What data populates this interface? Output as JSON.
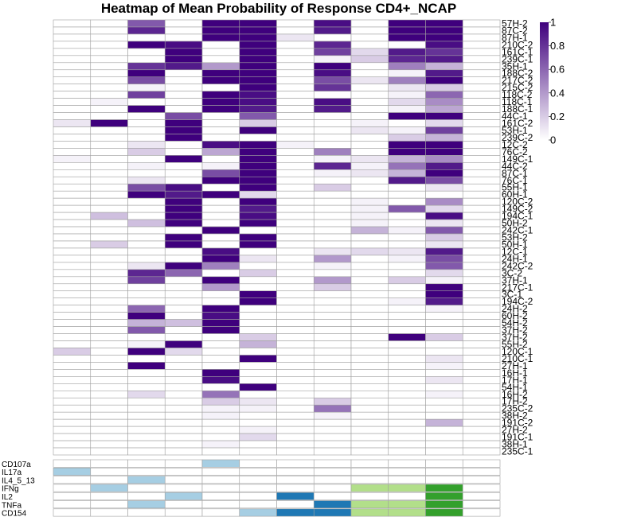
{
  "chart_data": {
    "type": "heatmap",
    "title": "Heatmap of Mean Probability of Response CD4+_NCAP",
    "colorbar": {
      "ticks": [
        "1",
        "0.8",
        "0.6",
        "0.4",
        "0.2",
        "0"
      ],
      "range": [
        0,
        1
      ],
      "low_color": "#ffffff",
      "high_color": "#3f007d"
    },
    "n_columns": 12,
    "rows": [
      {
        "label": "57H-2",
        "values": [
          0,
          0,
          0.65,
          0,
          1,
          1,
          0,
          0.95,
          0,
          1,
          1,
          0
        ]
      },
      {
        "label": "87C-2",
        "values": [
          0,
          0,
          0.85,
          0,
          1,
          1,
          0,
          0.9,
          0,
          1,
          1,
          0
        ]
      },
      {
        "label": "87H-1",
        "values": [
          0,
          0,
          0,
          0,
          1,
          1,
          0.1,
          0,
          0,
          1,
          1,
          0
        ]
      },
      {
        "label": "210C-2",
        "values": [
          0,
          0,
          1,
          0.95,
          0,
          1,
          0,
          0.85,
          0,
          0,
          0.95,
          0
        ]
      },
      {
        "label": "161C-1",
        "values": [
          0,
          0,
          0,
          1,
          0,
          1,
          0,
          0.75,
          0.15,
          0.9,
          0.8,
          0
        ]
      },
      {
        "label": "239C-1",
        "values": [
          0,
          0,
          0,
          1,
          0,
          1,
          0,
          0.05,
          0.2,
          0.85,
          0.9,
          0
        ]
      },
      {
        "label": "35H-1",
        "values": [
          0,
          0,
          0.8,
          0.9,
          0.4,
          1,
          0,
          1,
          0,
          0.5,
          0.3,
          0
        ]
      },
      {
        "label": "188C-2",
        "values": [
          0,
          0,
          1,
          0,
          1,
          1,
          0,
          0.95,
          0,
          0.05,
          0.9,
          0
        ]
      },
      {
        "label": "217C-2",
        "values": [
          0,
          0,
          0.7,
          0,
          1,
          1,
          0,
          0.7,
          0.1,
          0.5,
          1,
          0
        ]
      },
      {
        "label": "215C-2",
        "values": [
          0,
          0,
          0.05,
          0,
          0,
          1,
          0,
          0.8,
          0,
          0.1,
          0.2,
          0
        ]
      },
      {
        "label": "118C-2",
        "values": [
          0,
          0,
          0.75,
          0,
          1,
          0.95,
          0,
          0,
          0,
          0.05,
          0.6,
          0
        ]
      },
      {
        "label": "118C-1",
        "values": [
          0,
          0.05,
          0,
          0,
          1,
          0.95,
          0,
          0.95,
          0,
          0.15,
          0.45,
          0
        ]
      },
      {
        "label": "188C-1",
        "values": [
          0,
          0,
          1,
          0,
          1,
          0.9,
          0,
          0.9,
          0,
          0.05,
          0.35,
          0
        ]
      },
      {
        "label": "44C-1",
        "values": [
          0,
          0,
          0,
          0.7,
          0,
          0.65,
          0,
          0,
          0,
          1,
          1,
          0
        ]
      },
      {
        "label": "161C-2",
        "values": [
          0.1,
          1,
          0,
          1,
          0,
          0.2,
          0,
          0,
          0.05,
          0,
          0.15,
          0
        ]
      },
      {
        "label": "53H-1",
        "values": [
          0,
          0,
          0,
          1,
          0,
          1,
          0,
          0,
          0.1,
          0.05,
          0.75,
          0
        ]
      },
      {
        "label": "239C-2",
        "values": [
          0,
          0,
          0,
          1,
          0,
          0,
          0,
          0,
          0,
          0.2,
          0.3,
          0
        ]
      },
      {
        "label": "12C-2",
        "values": [
          0,
          0,
          0.1,
          0,
          0.95,
          1,
          0.05,
          0,
          0,
          1,
          1,
          0
        ]
      },
      {
        "label": "76C-2",
        "values": [
          0,
          0,
          0.2,
          0,
          0.35,
          1,
          0,
          0.5,
          0,
          1,
          1,
          0
        ]
      },
      {
        "label": "149C-1",
        "values": [
          0.05,
          0,
          0,
          1,
          0,
          1,
          0,
          0.05,
          0.1,
          0.3,
          0.45,
          0
        ]
      },
      {
        "label": "44C-2",
        "values": [
          0,
          0,
          0.05,
          0,
          0.05,
          1,
          0,
          0.85,
          0.05,
          0.55,
          0.9,
          0
        ]
      },
      {
        "label": "87C-1",
        "values": [
          0,
          0,
          0,
          0,
          0.7,
          1,
          0,
          0.05,
          0.1,
          0.3,
          1,
          0
        ]
      },
      {
        "label": "76C-1",
        "values": [
          0,
          0,
          0.1,
          0,
          1,
          1,
          0,
          0,
          0,
          0.9,
          0.7,
          0
        ]
      },
      {
        "label": "55H-1",
        "values": [
          0,
          0,
          0.7,
          0.95,
          0,
          1,
          0,
          0.2,
          0,
          0,
          0.1,
          0
        ]
      },
      {
        "label": "60H-1",
        "values": [
          0,
          0,
          1,
          0.9,
          1,
          0.15,
          0,
          0,
          0,
          0,
          0,
          0
        ]
      },
      {
        "label": "120C-2",
        "values": [
          0,
          0,
          0,
          1,
          0,
          1,
          0,
          0,
          0.05,
          0,
          0.45,
          0
        ]
      },
      {
        "label": "149C-2",
        "values": [
          0,
          0,
          0,
          1,
          0,
          0.9,
          0,
          0,
          0.05,
          0.65,
          0.15,
          0
        ]
      },
      {
        "label": "194C-1",
        "values": [
          0,
          0.25,
          0,
          1,
          0,
          0.95,
          0,
          0,
          0.05,
          0,
          0.95,
          0
        ]
      },
      {
        "label": "50H-2",
        "values": [
          0,
          0,
          0.25,
          1,
          0,
          1,
          0,
          0,
          0.05,
          0,
          0.1,
          0
        ]
      },
      {
        "label": "242C-1",
        "values": [
          0,
          0,
          0,
          0,
          1,
          0,
          0,
          0,
          0.3,
          0.05,
          0.65,
          0
        ]
      },
      {
        "label": "53H-2",
        "values": [
          0,
          0,
          0,
          1,
          0,
          1,
          0,
          0,
          0,
          0,
          0.2,
          0
        ]
      },
      {
        "label": "50H-1",
        "values": [
          0,
          0.2,
          0,
          1,
          0,
          1,
          0,
          0,
          0,
          0,
          0.1,
          0
        ]
      },
      {
        "label": "12C-1",
        "values": [
          0,
          0,
          0,
          0,
          0.95,
          0,
          0,
          0.1,
          0.15,
          0.1,
          0.9,
          0
        ]
      },
      {
        "label": "24H-1",
        "values": [
          0,
          0,
          0,
          0,
          1,
          0.1,
          0,
          0.4,
          0,
          0.05,
          0.7,
          0
        ]
      },
      {
        "label": "242C-2",
        "values": [
          0,
          0,
          0.1,
          1,
          0.5,
          0,
          0,
          0.05,
          0,
          0,
          0.65,
          0
        ]
      },
      {
        "label": "3C-2",
        "values": [
          0,
          0,
          0.85,
          0.6,
          0,
          0.2,
          0,
          0,
          0,
          0,
          0.15,
          0
        ]
      },
      {
        "label": "37H-1",
        "values": [
          0,
          0,
          0.75,
          0,
          1,
          0,
          0,
          0.4,
          0,
          0.2,
          0.05,
          0
        ]
      },
      {
        "label": "217C-1",
        "values": [
          0,
          0,
          0,
          0,
          0.4,
          0,
          0,
          0.2,
          0,
          0,
          1,
          0
        ]
      },
      {
        "label": "3C-1",
        "values": [
          0,
          0,
          0,
          0,
          0,
          1,
          0,
          0,
          0,
          0,
          1,
          0
        ]
      },
      {
        "label": "194C-2",
        "values": [
          0,
          0,
          0,
          0,
          0,
          1,
          0,
          0,
          0,
          0.05,
          0.9,
          0
        ]
      },
      {
        "label": "24H-2",
        "values": [
          0,
          0,
          0.6,
          0,
          1,
          0,
          0,
          0,
          0,
          0,
          0.05,
          0
        ]
      },
      {
        "label": "60H-2",
        "values": [
          0,
          0,
          1,
          0,
          0.95,
          0,
          0,
          0,
          0,
          0,
          0,
          0
        ]
      },
      {
        "label": "54H-2",
        "values": [
          0,
          0,
          0.3,
          0.25,
          1,
          0,
          0,
          0,
          0,
          0,
          0,
          0
        ]
      },
      {
        "label": "37H-2",
        "values": [
          0,
          0,
          0.65,
          0,
          1,
          0,
          0,
          0,
          0,
          0,
          0,
          0
        ]
      },
      {
        "label": "37H-2",
        "values": [
          0,
          0,
          0,
          0,
          0,
          0.2,
          0,
          0,
          0,
          1,
          0.2,
          0
        ]
      },
      {
        "label": "55H-2",
        "values": [
          0,
          0,
          0.05,
          1,
          0,
          0.3,
          0,
          0,
          0,
          0,
          0,
          0
        ]
      },
      {
        "label": "120C-1",
        "values": [
          0.2,
          0,
          1,
          0.15,
          0,
          0,
          0,
          0,
          0,
          0,
          0,
          0
        ]
      },
      {
        "label": "210C-1",
        "values": [
          0,
          0,
          0,
          0,
          0,
          1,
          0,
          0,
          0,
          0,
          0.1,
          0
        ]
      },
      {
        "label": "27H-1",
        "values": [
          0,
          0,
          1,
          0,
          0,
          0,
          0,
          0,
          0,
          0,
          0.05,
          0
        ]
      },
      {
        "label": "16H-1",
        "values": [
          0,
          0,
          0,
          0,
          1,
          0,
          0,
          0,
          0,
          0,
          0,
          0
        ]
      },
      {
        "label": "17H-1",
        "values": [
          0,
          0,
          0,
          0,
          0.95,
          0,
          0,
          0,
          0,
          0,
          0.1,
          0
        ]
      },
      {
        "label": "54H-1",
        "values": [
          0,
          0,
          0,
          0,
          0,
          1,
          0,
          0,
          0,
          0,
          0,
          0
        ]
      },
      {
        "label": "16H-2",
        "values": [
          0,
          0,
          0.15,
          0,
          0.55,
          0,
          0,
          0,
          0,
          0,
          0.05,
          0
        ]
      },
      {
        "label": "17H-2",
        "values": [
          0,
          0,
          0,
          0,
          0.2,
          0.1,
          0,
          0.2,
          0,
          0,
          0,
          0
        ]
      },
      {
        "label": "235C-2",
        "values": [
          0,
          0,
          0,
          0,
          0.05,
          0.05,
          0,
          0.55,
          0,
          0,
          0,
          0
        ]
      },
      {
        "label": "38H-2",
        "values": [
          0,
          0,
          0,
          0,
          0.05,
          0,
          0,
          0.05,
          0,
          0,
          0,
          0
        ]
      },
      {
        "label": "191C-2",
        "values": [
          0,
          0,
          0,
          0,
          0,
          0,
          0,
          0,
          0,
          0,
          0.3,
          0
        ]
      },
      {
        "label": "27H-2",
        "values": [
          0,
          0,
          0,
          0,
          0,
          0.05,
          0,
          0,
          0,
          0,
          0,
          0
        ]
      },
      {
        "label": "191C-1",
        "values": [
          0,
          0,
          0,
          0,
          0,
          0.15,
          0,
          0,
          0,
          0,
          0,
          0
        ]
      },
      {
        "label": "38H-1",
        "values": [
          0,
          0,
          0,
          0,
          0.05,
          0,
          0,
          0,
          0,
          0,
          0,
          0
        ]
      },
      {
        "label": "235C-1",
        "values": [
          0,
          0,
          0,
          0,
          0,
          0,
          0,
          0,
          0,
          0,
          0,
          0
        ]
      }
    ],
    "annotation": {
      "rows": [
        {
          "label": "CD107a",
          "cells": [
            0,
            0,
            0,
            0,
            1,
            0,
            0,
            0,
            0,
            0,
            0,
            0
          ]
        },
        {
          "label": "IL17a",
          "cells": [
            1,
            0,
            0,
            0,
            0,
            0,
            0,
            0,
            0,
            0,
            0,
            0
          ]
        },
        {
          "label": "IL4_5_13",
          "cells": [
            0,
            0,
            1,
            0,
            0,
            0,
            0,
            0,
            0,
            0,
            0,
            0
          ]
        },
        {
          "label": "IFNg",
          "cells": [
            0,
            1,
            0,
            0,
            0,
            0,
            0,
            0,
            3,
            3,
            4,
            0
          ]
        },
        {
          "label": "IL2",
          "cells": [
            0,
            0,
            0,
            1,
            0,
            0,
            2,
            0,
            0,
            0,
            4,
            0
          ]
        },
        {
          "label": "TNFa",
          "cells": [
            0,
            0,
            1,
            0,
            0,
            0,
            0,
            2,
            3,
            3,
            4,
            0
          ]
        },
        {
          "label": "CD154",
          "cells": [
            0,
            0,
            0,
            0,
            0,
            1,
            2,
            2,
            3,
            3,
            4,
            0
          ]
        }
      ],
      "colors": [
        "#ffffff",
        "#a6cee3",
        "#1f78b4",
        "#b2df8a",
        "#33a02c"
      ]
    }
  }
}
